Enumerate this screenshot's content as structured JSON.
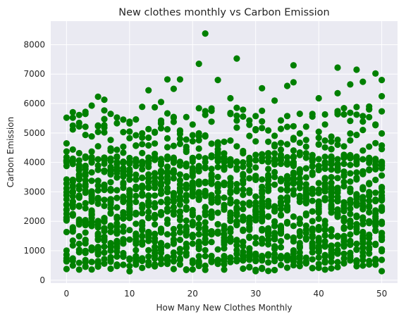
{
  "chart_data": {
    "type": "scatter",
    "title": "New clothes monthly vs Carbon Emission",
    "xlabel": "How Many New Clothes Monthly",
    "ylabel": "Carbon Emission",
    "xlim": [
      -2.5,
      52.5
    ],
    "ylim": [
      -100,
      8800
    ],
    "xticks": [
      0,
      10,
      20,
      30,
      40,
      50
    ],
    "yticks": [
      0,
      1000,
      2000,
      3000,
      4000,
      5000,
      6000,
      7000,
      8000
    ],
    "grid": true,
    "background": "#eaeaf2",
    "grid_color": "#ffffff",
    "point_color": "#008000",
    "x_values": "integers 0–50",
    "dense_band": [
      600,
      4200
    ],
    "outliers": [
      {
        "x": 22,
        "y": 8380
      },
      {
        "x": 27,
        "y": 7530
      },
      {
        "x": 21,
        "y": 7350
      },
      {
        "x": 36,
        "y": 7300
      },
      {
        "x": 43,
        "y": 7220
      },
      {
        "x": 46,
        "y": 7150
      },
      {
        "x": 49,
        "y": 7020
      },
      {
        "x": 16,
        "y": 6820
      },
      {
        "x": 18,
        "y": 6820
      },
      {
        "x": 24,
        "y": 6800
      },
      {
        "x": 50,
        "y": 6800
      },
      {
        "x": 47,
        "y": 6740
      },
      {
        "x": 36,
        "y": 6720
      },
      {
        "x": 45,
        "y": 6650
      },
      {
        "x": 35,
        "y": 6600
      },
      {
        "x": 31,
        "y": 6520
      },
      {
        "x": 17,
        "y": 6500
      },
      {
        "x": 13,
        "y": 6450
      },
      {
        "x": 43,
        "y": 6350
      },
      {
        "x": 50,
        "y": 6250
      },
      {
        "x": 5,
        "y": 6230
      },
      {
        "x": 26,
        "y": 6180
      },
      {
        "x": 40,
        "y": 6180
      },
      {
        "x": 6,
        "y": 6130
      },
      {
        "x": 15,
        "y": 6050
      },
      {
        "x": 33,
        "y": 6100
      },
      {
        "x": 4,
        "y": 5930
      },
      {
        "x": 7,
        "y": 5650
      },
      {
        "x": 1,
        "y": 5520
      }
    ]
  }
}
